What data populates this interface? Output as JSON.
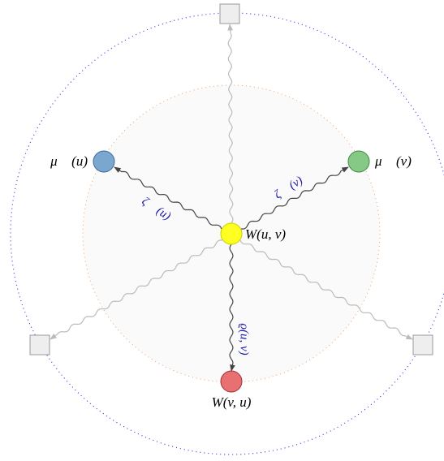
{
  "nodes": [
    {
      "label": "μ⃗ (u)"
    },
    {
      "label": "μ⃖ (v)"
    },
    {
      "label": "W(u, v)"
    },
    {
      "label": "W(v, u)"
    }
  ],
  "edges": [
    {
      "label": "ζ⃗ (u)"
    },
    {
      "label": "ζ⃖ (v)"
    },
    {
      "label": "ϱ(u, v)"
    }
  ]
}
